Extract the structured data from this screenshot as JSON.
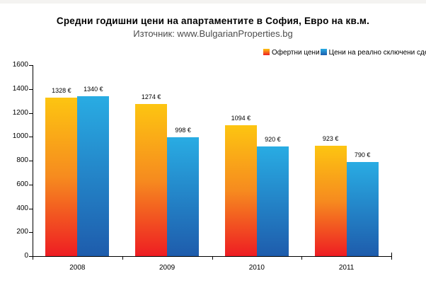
{
  "header": {
    "title": "Средни годишни цени на апартаментите в София, Евро на кв.м.",
    "subtitle": "Източник: www.BulgarianProperties.bg"
  },
  "legend": {
    "position": "top-right, clipped at right edge",
    "items": [
      {
        "label": "Офертни цени",
        "gradient": [
          "#FDC511",
          "#EE1D23"
        ]
      },
      {
        "label": "Цени на реално сключени сде",
        "gradient": [
          "#29ACE3",
          "#1E5CAC"
        ]
      }
    ]
  },
  "chart_data": {
    "type": "bar",
    "title": "Средни годишни цени на апартаментите в София, Евро на кв.м.",
    "subtitle": "Източник: www.BulgarianProperties.bg",
    "categories": [
      "2008",
      "2009",
      "2010",
      "2011"
    ],
    "series": [
      {
        "name": "Офертни цени",
        "values": [
          1328,
          1274,
          1094,
          923
        ],
        "gradient": [
          "#FDC511",
          "#F68B1F",
          "#EE1D23"
        ]
      },
      {
        "name": "Цени на реално сключени сде",
        "values": [
          1340,
          998,
          920,
          790
        ],
        "gradient": [
          "#29ACE3",
          "#1E5CAC"
        ]
      }
    ],
    "value_labels": [
      [
        "1328 €",
        "1274 €",
        "1094 €",
        "923 €"
      ],
      [
        "1340 €",
        "998 €",
        "920 €",
        "790 €"
      ]
    ],
    "value_suffix": " €",
    "ylim": [
      0,
      1600
    ],
    "yticks": [
      0,
      200,
      400,
      600,
      800,
      1000,
      1200,
      1400,
      1600
    ],
    "grid": false,
    "legend_position": "top-right"
  },
  "colors": {
    "background": "#ffffff",
    "axis": "#000000",
    "subtitle_text": "#4d4d4d",
    "orange_top": "#FDC511",
    "orange_mid": "#F68B1F",
    "orange_bottom": "#EE1D23",
    "blue_top": "#29ACE3",
    "blue_bottom": "#1E5CAC"
  }
}
